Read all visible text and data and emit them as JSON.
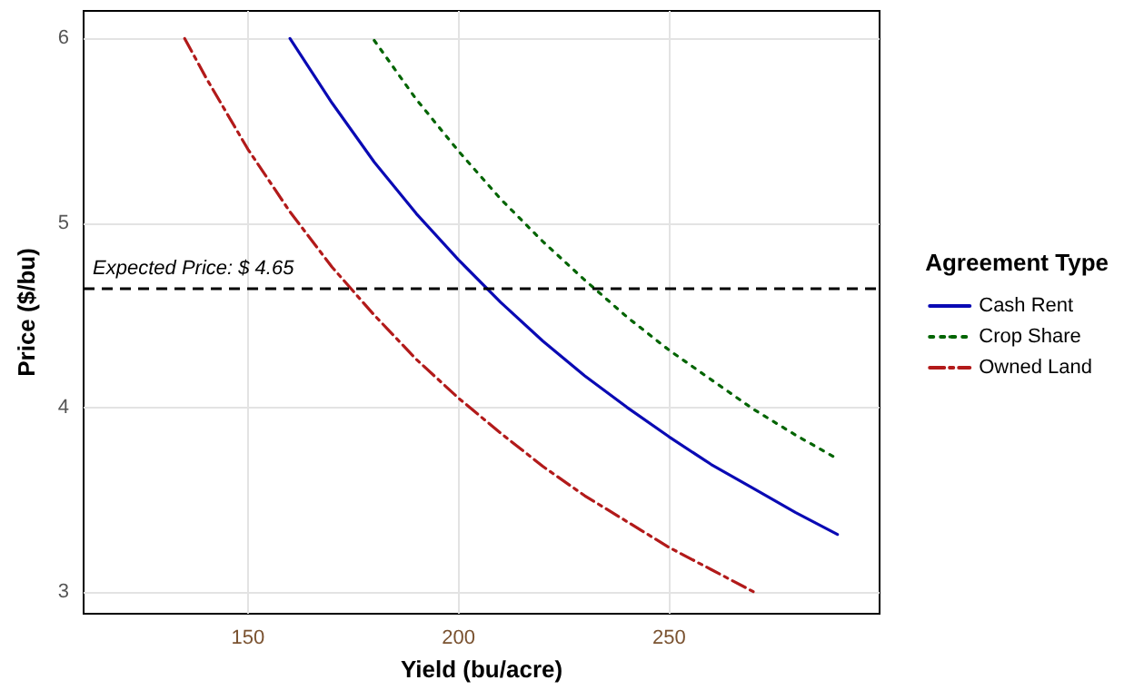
{
  "chart_data": {
    "type": "line",
    "xlabel": "Yield (bu/acre)",
    "ylabel": "Price ($/bu)",
    "legend_title": "Agreement Type",
    "legend": "right",
    "grid": true,
    "marker": "none",
    "xlim": [
      111,
      300
    ],
    "xticks": [
      150,
      200,
      250
    ],
    "ylim": [
      2.88,
      6.15
    ],
    "yticks": [
      3,
      4,
      5,
      6
    ],
    "ref_lines": [
      {
        "axis": "y",
        "value": 4.65,
        "label": "Expected Price: $ 4.65",
        "color": "#000000",
        "line_style": "dashed"
      }
    ],
    "series": [
      {
        "name": "Cash Rent",
        "color": "#0a0ab4",
        "line_style": "solid",
        "x": [
          160,
          170,
          180,
          190,
          200,
          210,
          220,
          230,
          240,
          250,
          260,
          270,
          280,
          290
        ],
        "values": [
          6.0,
          5.65,
          5.33,
          5.05,
          4.8,
          4.57,
          4.36,
          4.17,
          4.0,
          3.84,
          3.69,
          3.56,
          3.43,
          3.31
        ]
      },
      {
        "name": "Crop Share",
        "color": "#006400",
        "line_style": "dotted",
        "x": [
          180,
          190,
          200,
          210,
          220,
          230,
          240,
          250,
          260,
          270,
          280,
          290
        ],
        "values": [
          5.99,
          5.67,
          5.39,
          5.13,
          4.9,
          4.69,
          4.49,
          4.31,
          4.15,
          3.99,
          3.85,
          3.72
        ]
      },
      {
        "name": "Owned Land",
        "color": "#b21a1a",
        "line_style": "dashdot",
        "x": [
          135,
          140,
          150,
          160,
          170,
          180,
          190,
          200,
          210,
          220,
          230,
          240,
          250,
          260,
          270
        ],
        "values": [
          6.0,
          5.79,
          5.4,
          5.06,
          4.76,
          4.5,
          4.26,
          4.05,
          3.86,
          3.68,
          3.52,
          3.38,
          3.24,
          3.12,
          3.0
        ]
      }
    ]
  }
}
